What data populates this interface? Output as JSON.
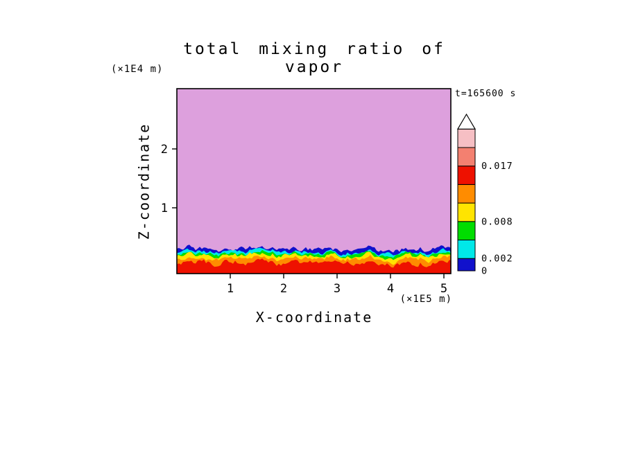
{
  "page": {
    "background": "#ffffff"
  },
  "chart_data": {
    "type": "heatmap",
    "title": "total mixing ratio of vapor",
    "xlabel": "X-coordinate",
    "ylabel": "Z-coordinate",
    "x_unit_label": "(×1E5 m)",
    "y_unit_label": "(×1E4 m)",
    "time_annotation": "t=165600 s",
    "x_ticks": [
      1,
      2,
      3,
      4,
      5
    ],
    "y_ticks": [
      1,
      2
    ],
    "xlim": [
      0,
      5.15
    ],
    "ylim": [
      -0.1,
      3.0
    ],
    "grid": false,
    "legend_position": "right-colorbar",
    "palette": {
      "plum": "#DDA0DD",
      "blue": "#1111CC",
      "cyan": "#00E8E8",
      "green": "#00DD00",
      "yellow": "#FFE400",
      "orange": "#FF8C00",
      "red": "#EE1100",
      "salmon": "#F38070",
      "pink": "#F6BFC4"
    },
    "field_description": "Vapor mixing ratio is in the lowest (plum) class through most of the domain; thin stratified high-value layers hug the surface with jagged, undulating tops.",
    "boundary_undulation": 0.05,
    "layers": [
      {
        "name": "red",
        "range": "0.014-0.017",
        "color_key": "red",
        "z_top": 0.18,
        "jitter": 0.03
      },
      {
        "name": "orange",
        "range": "0.011-0.014",
        "color_key": "orange",
        "z_top": 0.25,
        "jitter": 0.025
      },
      {
        "name": "yellow",
        "range": "0.008-0.011",
        "color_key": "yellow",
        "z_top": 0.3,
        "jitter": 0.022
      },
      {
        "name": "green",
        "range": "0.005-0.008",
        "color_key": "green",
        "z_top": 0.33,
        "jitter": 0.018
      },
      {
        "name": "cyan",
        "range": "0.002-0.005",
        "color_key": "cyan",
        "z_top": 0.36,
        "jitter": 0.018
      },
      {
        "name": "blue",
        "range": "0-0.002",
        "color_key": "blue",
        "z_top": 0.41,
        "jitter": 0.025
      }
    ],
    "colorbar": {
      "over_arrow": true,
      "segments": [
        {
          "from": 0,
          "to": 0.002,
          "color_key": "blue"
        },
        {
          "from": 0.002,
          "to": 0.005,
          "color_key": "cyan"
        },
        {
          "from": 0.005,
          "to": 0.008,
          "color_key": "green"
        },
        {
          "from": 0.008,
          "to": 0.011,
          "color_key": "yellow"
        },
        {
          "from": 0.011,
          "to": 0.014,
          "color_key": "orange"
        },
        {
          "from": 0.014,
          "to": 0.017,
          "color_key": "red"
        },
        {
          "from": 0.017,
          "to": 0.02,
          "color_key": "salmon"
        },
        {
          "from": 0.02,
          "to": 0.023,
          "color_key": "pink"
        }
      ],
      "labels": [
        {
          "text": "0.017",
          "level": 0.017
        },
        {
          "text": "0.008",
          "level": 0.008
        },
        {
          "text": "0.002",
          "level": 0.002
        },
        {
          "text": "0",
          "level": 0
        }
      ]
    }
  }
}
